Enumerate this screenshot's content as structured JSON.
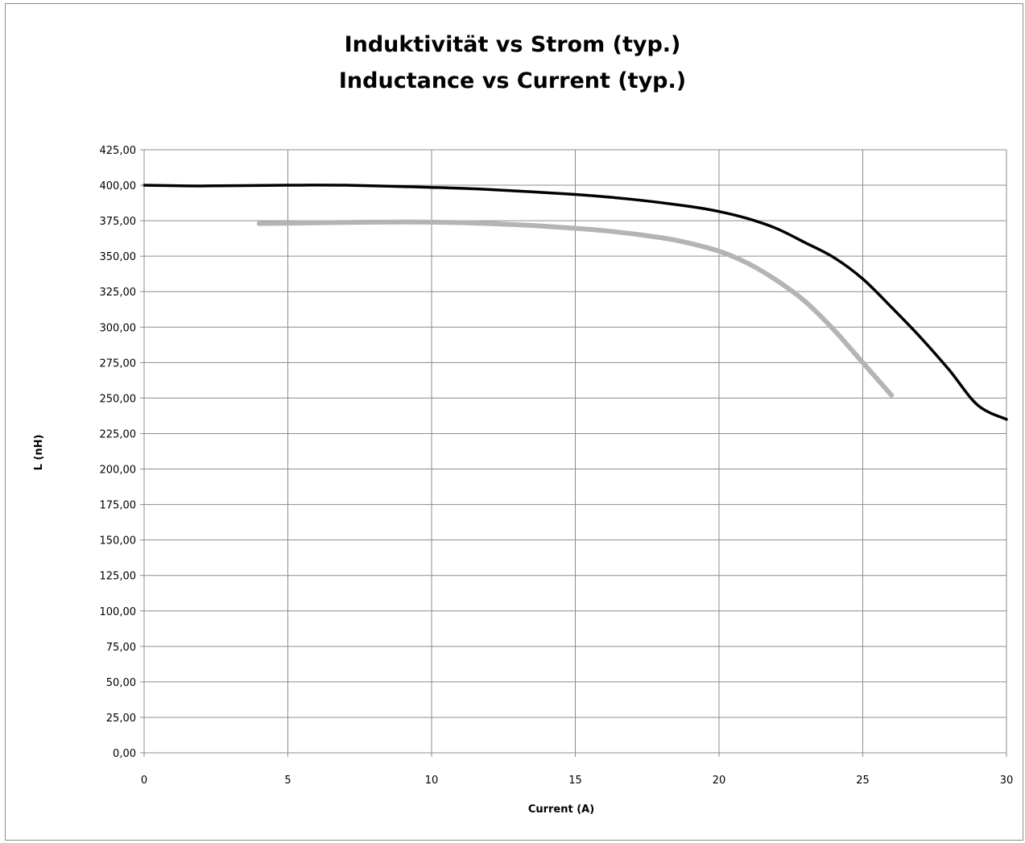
{
  "chart_data": {
    "type": "line",
    "title": "Induktivität vs Strom (typ.)",
    "subtitle": "Inductance vs Current (typ.)",
    "xlabel": "Current (A)",
    "ylabel": "L (nH)",
    "xlim": [
      0,
      30
    ],
    "ylim": [
      0,
      425
    ],
    "x_ticks": [
      0,
      5,
      10,
      15,
      20,
      25,
      30
    ],
    "x_tick_labels": [
      "0",
      "5",
      "10",
      "15",
      "20",
      "25",
      "30"
    ],
    "y_ticks": [
      0,
      25,
      50,
      75,
      100,
      125,
      150,
      175,
      200,
      225,
      250,
      275,
      300,
      325,
      350,
      375,
      400,
      425
    ],
    "y_tick_labels": [
      "0,00",
      "25,00",
      "50,00",
      "75,00",
      "100,00",
      "125,00",
      "150,00",
      "175,00",
      "200,00",
      "225,00",
      "250,00",
      "275,00",
      "300,00",
      "325,00",
      "350,00",
      "375,00",
      "400,00",
      "425,00"
    ],
    "grid": true,
    "legend": "none",
    "series": [
      {
        "color": "#000000",
        "x": [
          0,
          2,
          5,
          7,
          10,
          12,
          15,
          17,
          19,
          20,
          21,
          22,
          23,
          24,
          25,
          26,
          27,
          28,
          29,
          30
        ],
        "values": [
          400,
          399.5,
          400,
          400,
          398.5,
          397,
          393.5,
          390,
          385,
          381.5,
          376.5,
          369.5,
          359.5,
          349,
          334,
          314,
          293,
          270,
          245,
          235
        ]
      },
      {
        "color": "#b4b4b4",
        "x": [
          4,
          6,
          8,
          10,
          12,
          14,
          16,
          18,
          19,
          20,
          21,
          22,
          23,
          24,
          25,
          26
        ],
        "values": [
          373,
          373.5,
          374,
          374,
          373,
          371,
          368,
          363,
          359,
          353.5,
          345,
          333,
          318,
          298,
          275,
          252
        ]
      }
    ]
  }
}
